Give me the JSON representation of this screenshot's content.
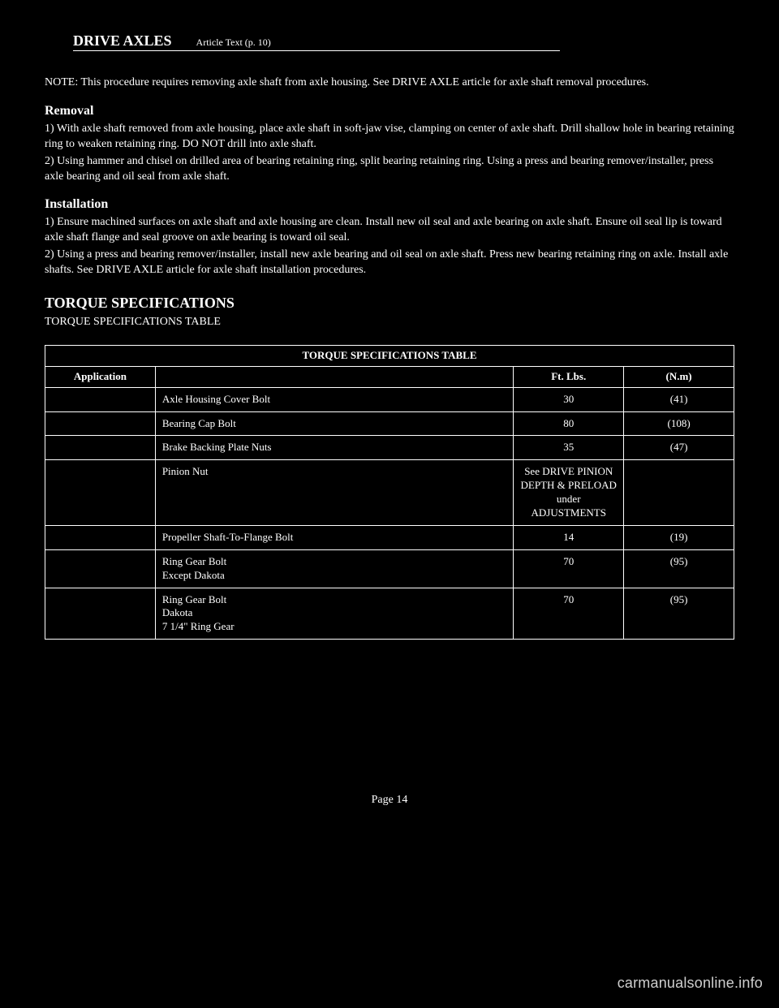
{
  "header": {
    "title": "DRIVE AXLES",
    "subtitle": "Article Text (p. 10)"
  },
  "intro": {
    "title": "TORQUE SPECIFICATIONS",
    "caption_label": "TORQUE SPECIFICATIONS TABLE"
  },
  "paragraphs": {
    "p1": "NOTE: This procedure requires removing axle shaft from axle housing. See DRIVE AXLE article for axle shaft removal procedures.",
    "p2": "1) With axle shaft removed from axle housing, place axle shaft in soft-jaw vise, clamping on center of axle shaft. Drill shallow hole in bearing retaining ring to weaken retaining ring. DO NOT drill into axle shaft.",
    "p3": "2) Using hammer and chisel on drilled area of bearing retaining ring, split bearing retaining ring. Using a press and bearing remover/installer, press axle bearing and oil seal from axle shaft.",
    "p4": "1) Ensure machined surfaces on axle shaft and axle housing are clean. Install new oil seal and axle bearing on axle shaft. Ensure oil seal lip is toward axle shaft flange and seal groove on axle bearing is toward oil seal.",
    "p5": "2) Using a press and bearing remover/installer, install new axle bearing and oil seal on axle shaft. Press new bearing retaining ring on axle. Install axle shafts. See DRIVE AXLE article for axle shaft installation procedures."
  },
  "subtitles": {
    "removal": "Removal",
    "installation": "Installation"
  },
  "table": {
    "title_row": "TORQUE SPECIFICATIONS TABLE",
    "columns": [
      "Application",
      "",
      "Ft. Lbs.",
      "(N.m)"
    ],
    "rows": [
      [
        "",
        "Axle Housing Cover Bolt",
        "30",
        "(41)"
      ],
      [
        "",
        "Bearing Cap Bolt",
        "80",
        "(108)"
      ],
      [
        "",
        "Brake Backing Plate Nuts",
        "35",
        "(47)"
      ],
      [
        "",
        "Pinion Nut",
        "See DRIVE PINION DEPTH & PRELOAD under ADJUSTMENTS",
        "",
        ""
      ],
      [
        "",
        "Propeller Shaft-To-Flange Bolt",
        "14",
        "(19)"
      ],
      [
        "",
        "Ring Gear Bolt\n  Except Dakota",
        "70",
        "(95)"
      ],
      [
        "",
        "Ring Gear Bolt\n  Dakota\n    7 1/4\" Ring Gear",
        "70",
        "(95)"
      ]
    ]
  },
  "footer": {
    "page_num": "Page 14",
    "watermark": "carmanualsonline.info"
  },
  "style": {
    "background_color": "#000000",
    "text_color": "#ffffff",
    "border_color": "#ffffff",
    "title_fontsize": 18,
    "body_fontsize": 14,
    "table_fontsize": 13,
    "watermark_color": "#cfcfcf"
  }
}
